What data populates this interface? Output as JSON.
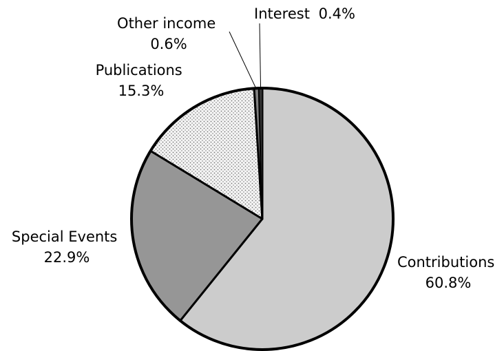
{
  "chart_data": {
    "type": "pie",
    "title": "",
    "start_angle_deg": 0,
    "direction": "clockwise",
    "slices": [
      {
        "label": "Contributions",
        "value": 60.8,
        "value_label": "60.8%",
        "color": "#cccccc",
        "pattern": "solid"
      },
      {
        "label": "Special Events",
        "value": 22.9,
        "value_label": "22.9%",
        "color": "#969696",
        "pattern": "solid"
      },
      {
        "label": "Publications",
        "value": 15.3,
        "value_label": "15.3%",
        "color": "#f2f2f2",
        "pattern": "dots"
      },
      {
        "label": "Other income",
        "value": 0.6,
        "value_label": "0.6%",
        "color": "#808080",
        "pattern": "solid"
      },
      {
        "label": "Interest",
        "value": 0.4,
        "value_label": "0.4%",
        "color": "#333333",
        "pattern": "solid"
      }
    ]
  }
}
